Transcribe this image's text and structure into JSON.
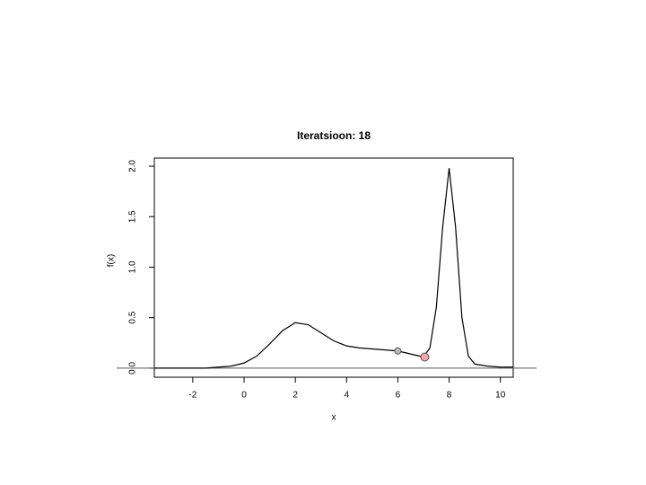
{
  "chart_data": {
    "type": "line",
    "title": "Iteratsioon: 18",
    "xlabel": "x",
    "ylabel": "f(x)",
    "x": [
      -3.5,
      -3,
      -2.5,
      -2,
      -1.5,
      -1,
      -0.5,
      0,
      0.5,
      1,
      1.5,
      2,
      2.5,
      3,
      3.5,
      4,
      4.5,
      5,
      5.5,
      6,
      6.5,
      7,
      7.25,
      7.5,
      7.75,
      8,
      8.25,
      8.5,
      8.75,
      9,
      9.5,
      10,
      10.5
    ],
    "series": [
      {
        "color": "#000000",
        "values": [
          0,
          0,
          0,
          0,
          0,
          0.01,
          0.02,
          0.05,
          0.12,
          0.24,
          0.37,
          0.45,
          0.43,
          0.35,
          0.27,
          0.22,
          0.2,
          0.19,
          0.18,
          0.17,
          0.14,
          0.11,
          0.2,
          0.6,
          1.4,
          1.98,
          1.4,
          0.5,
          0.12,
          0.04,
          0.02,
          0.01,
          0.01
        ]
      }
    ],
    "points": [
      {
        "x": 6,
        "y": 0.17,
        "color": "#bbbbbb"
      },
      {
        "x": 7.05,
        "y": 0.11,
        "color": "#f4a6a6"
      }
    ],
    "hline": 0,
    "xlim": [
      -3.5,
      10.5
    ],
    "xticks": [
      -2,
      0,
      2,
      4,
      6,
      8,
      10
    ],
    "ylim": [
      -0.09,
      2.08
    ],
    "yticks": [
      {
        "value": 0,
        "label": "0.0"
      },
      0.5,
      {
        "value": 1,
        "label": "1.0"
      },
      1.5,
      {
        "value": 2,
        "label": "2.0"
      }
    ]
  }
}
